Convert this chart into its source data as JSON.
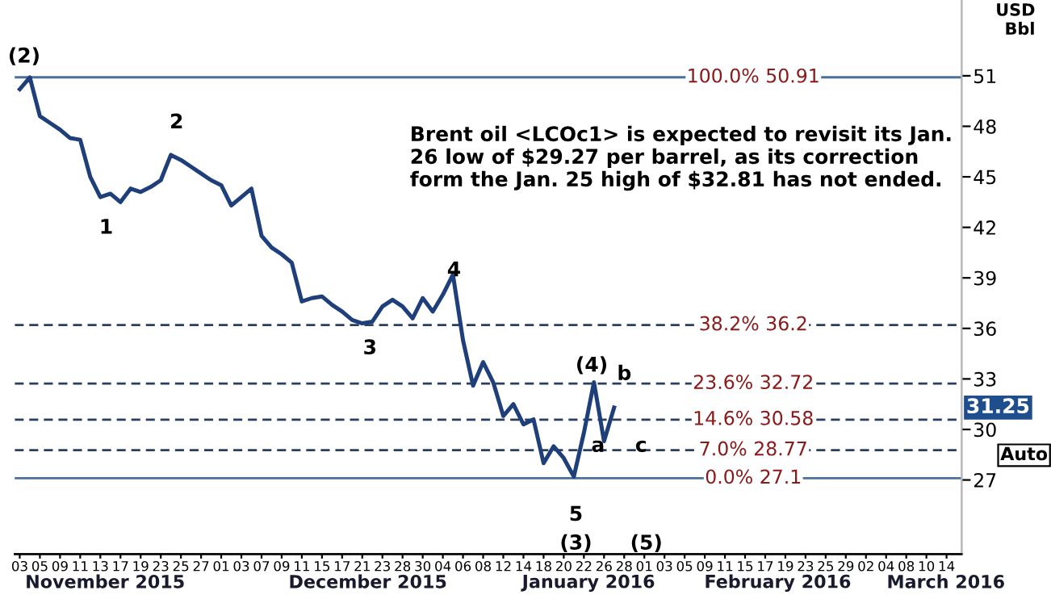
{
  "chart_data": {
    "type": "line",
    "y2label": "USD\nBbl",
    "categories": [
      "03",
      null,
      "05",
      null,
      "09",
      null,
      "11",
      null,
      "13",
      null,
      "17",
      null,
      "19",
      null,
      "23",
      null,
      "25",
      null,
      "27",
      null,
      "01",
      null,
      "03",
      null,
      "07",
      null,
      "09",
      null,
      "11",
      null,
      "15",
      null,
      "17",
      null,
      "21",
      null,
      "23",
      null,
      "28",
      null,
      "30",
      null,
      "04",
      null,
      "06",
      null,
      "08",
      null,
      "12",
      null,
      "14",
      null,
      "18",
      null,
      "20",
      null,
      "22",
      null,
      "26",
      null,
      "28",
      null,
      "01",
      null,
      "03",
      null,
      "05",
      null,
      "09",
      null,
      "11",
      null,
      "15",
      null,
      "17",
      null,
      "19",
      null,
      "23",
      null,
      "25",
      null,
      "29",
      null,
      "02",
      null,
      "04",
      null,
      "08",
      null,
      "10",
      null,
      "14",
      null
    ],
    "series": [
      {
        "color": "#1f3f7a",
        "axis": "y2",
        "values": [
          50.2,
          50.9,
          48.6,
          48.2,
          47.8,
          47.3,
          47.2,
          45.0,
          43.8,
          44.0,
          43.5,
          44.3,
          44.1,
          44.4,
          44.8,
          46.3,
          46.0,
          45.6,
          45.2,
          44.8,
          44.5,
          43.3,
          43.8,
          44.3,
          41.5,
          40.8,
          40.4,
          39.9,
          37.6,
          37.8,
          37.9,
          37.4,
          37.0,
          36.5,
          36.3,
          36.4,
          37.3,
          37.7,
          37.3,
          36.6,
          37.8,
          37.0,
          38.0,
          39.2,
          35.3,
          32.6,
          34.0,
          32.8,
          30.8,
          31.5,
          30.3,
          30.6,
          28.0,
          29.0,
          28.3,
          27.2,
          29.8,
          32.8,
          29.3,
          31.3,
          null,
          null,
          null,
          null,
          null,
          null,
          null,
          null,
          null,
          null,
          null,
          null,
          null,
          null,
          null,
          null,
          null,
          null,
          null,
          null,
          null,
          null,
          null,
          null,
          null,
          null,
          null,
          null,
          null,
          null,
          null,
          null,
          null,
          null
        ]
      }
    ],
    "y2lim": [
      22.6,
      55.5
    ],
    "y2ticks": [
      27,
      30,
      33,
      36,
      39,
      42,
      45,
      48,
      51
    ],
    "grid": false,
    "legend": false,
    "marker": "none",
    "line_style": "solid",
    "ref_lines": [
      {
        "axis": "y2",
        "value": 50.91,
        "label": "100.0% 50.91",
        "color": "#4a6f9a",
        "line_style": "solid"
      },
      {
        "axis": "y2",
        "value": 36.2,
        "label": "38.2% 36.2",
        "color": "#2a3f5f",
        "line_style": "dashed"
      },
      {
        "axis": "y2",
        "value": 32.72,
        "label": "23.6% 32.72",
        "color": "#2a3f5f",
        "line_style": "dashed"
      },
      {
        "axis": "y2",
        "value": 30.58,
        "label": "14.6% 30.58",
        "color": "#2a3f5f",
        "line_style": "dashed"
      },
      {
        "axis": "y2",
        "value": 28.77,
        "label": "7.0% 28.77",
        "color": "#2a3f5f",
        "line_style": "dashed"
      },
      {
        "axis": "y2",
        "value": 27.1,
        "label": "0.0% 27.1",
        "color": "#4a6f9a",
        "line_style": "solid"
      }
    ],
    "annotations": [
      "Brent oil <LCOc1> is expected to revisit its Jan. 26 low of $29.27 per barrel, as its correction form the Jan. 25 high of $32.81 has not ended.",
      "November 2015",
      "December 2015",
      "January 2016",
      "February 2016",
      "March 2016",
      "Auto",
      "(2)",
      "2",
      "1",
      "3",
      "4",
      "(4)",
      "b",
      "a",
      "c",
      "5",
      "(3)",
      "(5)",
      "31.25"
    ]
  }
}
